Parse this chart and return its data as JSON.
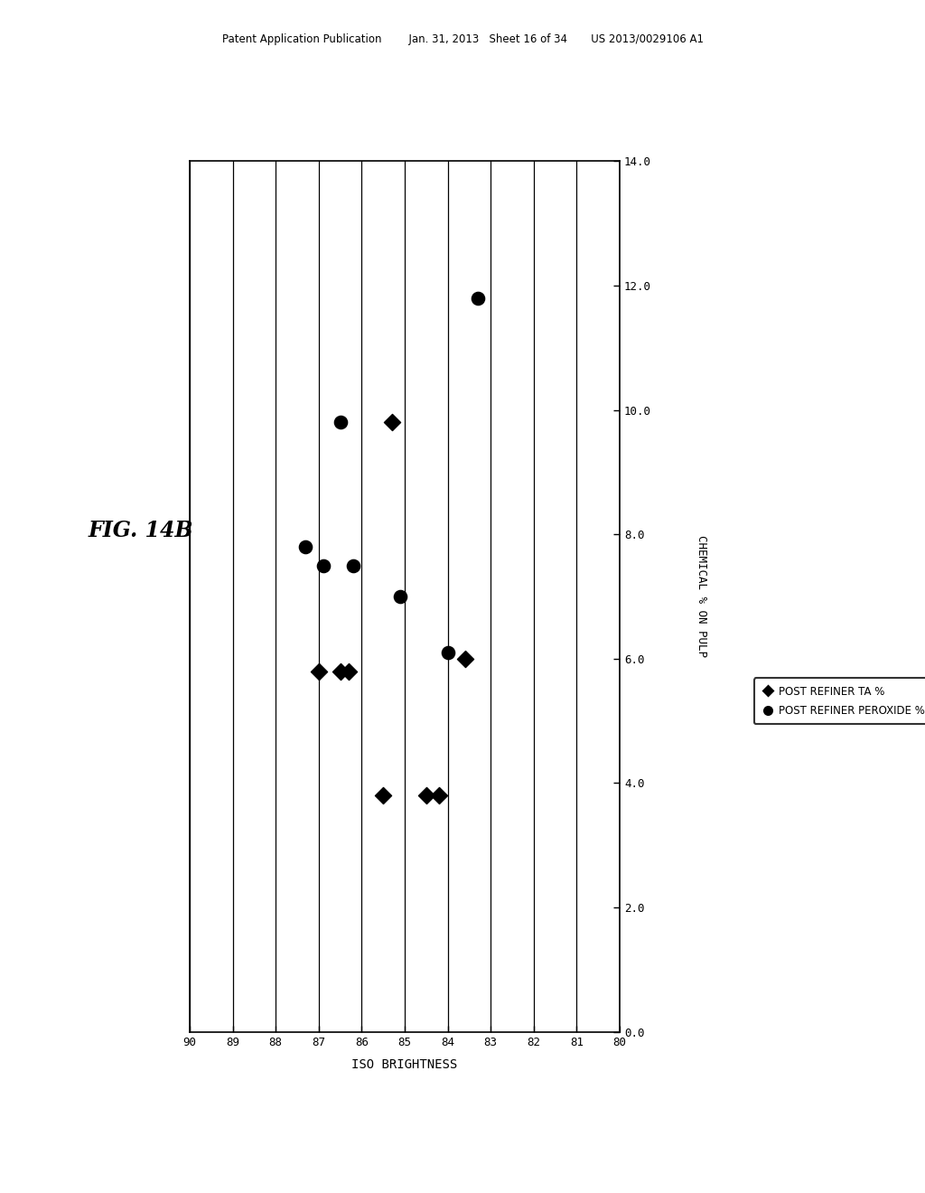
{
  "xlabel": "ISO BRIGHTNESS",
  "ylabel": "CHEMICAL % ON PULP",
  "fig_label": "FIG. 14B",
  "header": "Patent Application Publication        Jan. 31, 2013   Sheet 16 of 34       US 2013/0029106 A1",
  "xmin": 80,
  "xmax": 90,
  "ymin": 0.0,
  "ymax": 14.0,
  "xticks": [
    90,
    89,
    88,
    87,
    86,
    85,
    84,
    83,
    82,
    81,
    80
  ],
  "yticks": [
    0.0,
    2.0,
    4.0,
    6.0,
    8.0,
    10.0,
    12.0,
    14.0
  ],
  "diamond_series": {
    "label": "POST REFINER TA %",
    "x": [
      87.0,
      86.5,
      86.3,
      85.5,
      85.3,
      84.5,
      84.2,
      83.6
    ],
    "y": [
      5.8,
      5.8,
      5.8,
      3.8,
      9.8,
      3.8,
      3.8,
      6.0
    ]
  },
  "circle_series": {
    "label": "POST REFINER PEROXIDE %",
    "x": [
      87.3,
      86.9,
      86.5,
      86.2,
      85.1,
      84.0,
      83.3
    ],
    "y": [
      7.8,
      7.5,
      9.8,
      7.5,
      7.0,
      6.1,
      11.8
    ]
  },
  "background_color": "#ffffff",
  "marker_color": "#000000"
}
